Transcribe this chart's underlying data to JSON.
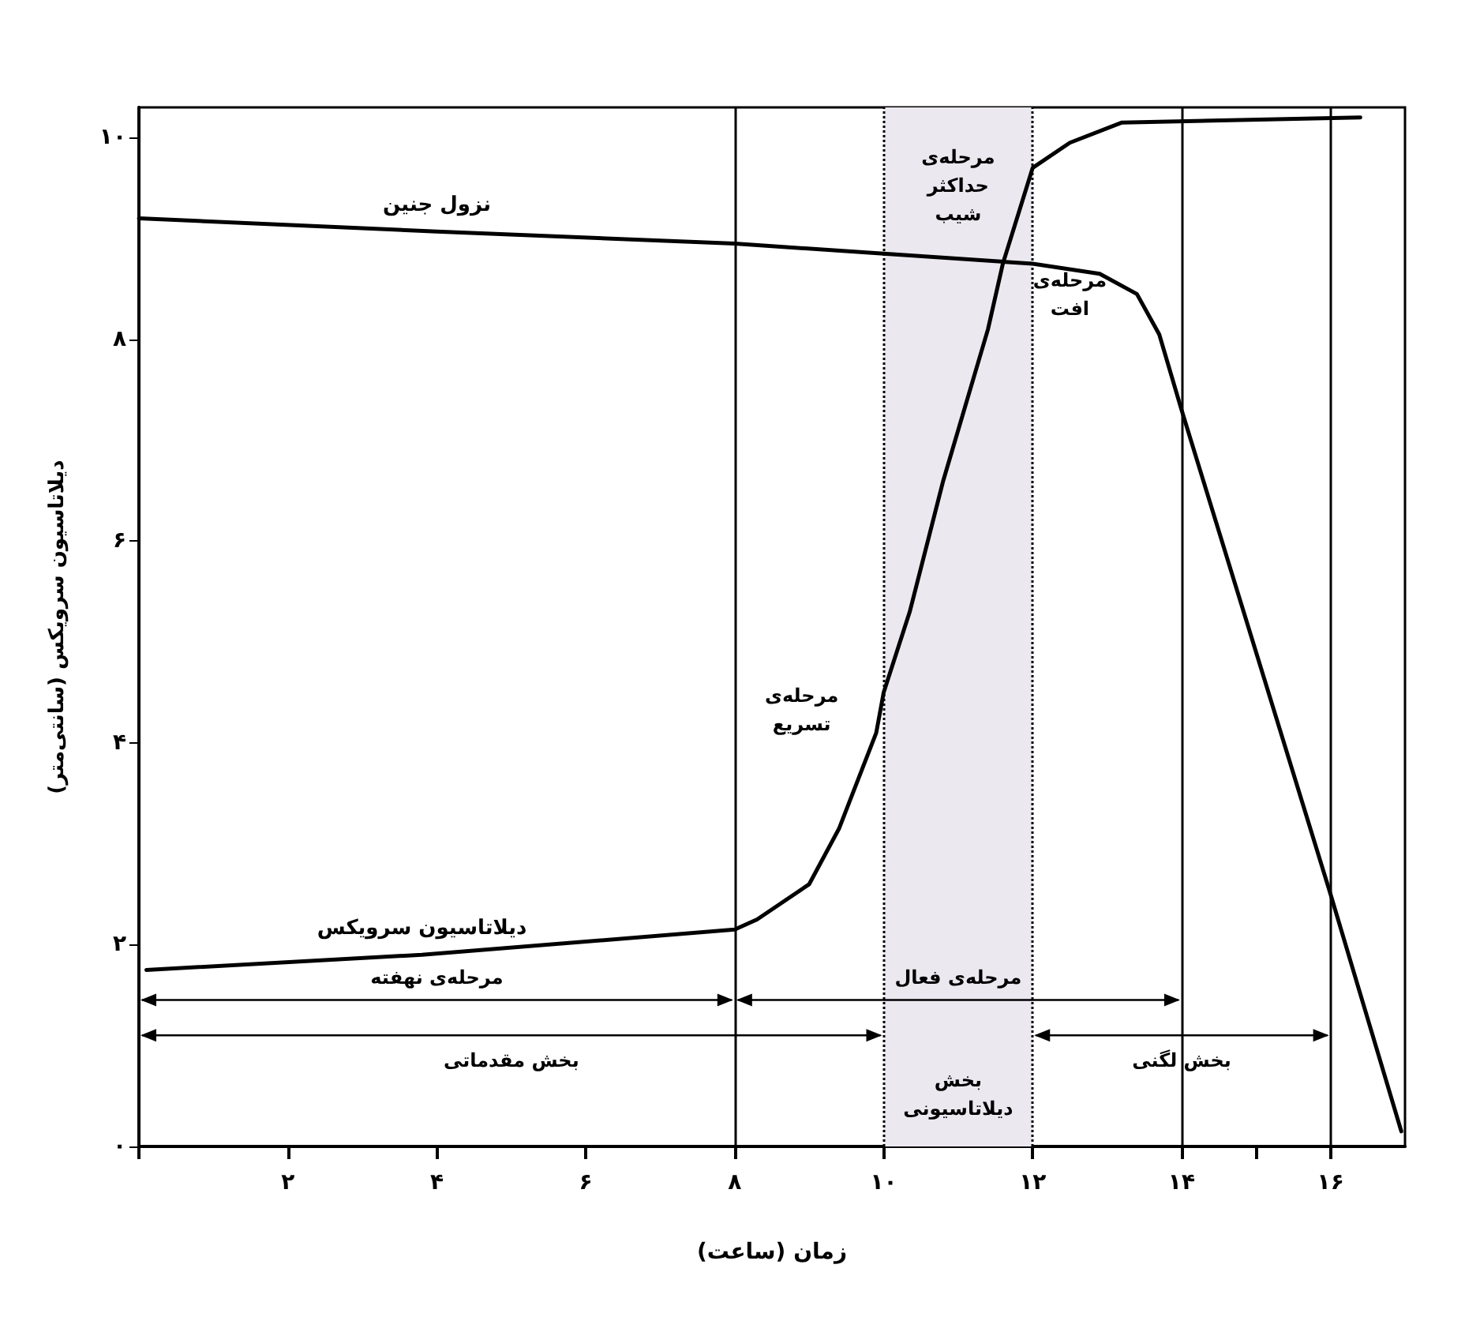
{
  "chart_data": {
    "type": "line",
    "xlabel": "زمان (ساعت)",
    "ylabel": "دیلاتاسیون سرویکس (سانتی‌متر)",
    "xlim": [
      0,
      17
    ],
    "ylim": [
      0,
      10.3
    ],
    "xticks": [
      {
        "value": 0,
        "label": null
      },
      {
        "value": 2,
        "label": "۲"
      },
      {
        "value": 4,
        "label": "۴"
      },
      {
        "value": 6,
        "label": "۶"
      },
      {
        "value": 8,
        "label": "۸"
      },
      {
        "value": 10,
        "label": "۱۰"
      },
      {
        "value": 12,
        "label": "۱۲"
      },
      {
        "value": 14,
        "label": "۱۴"
      },
      {
        "value": 15,
        "label": null
      },
      {
        "value": 16,
        "label": "۱۶"
      }
    ],
    "yticks": [
      {
        "value": 0,
        "label": "۰"
      },
      {
        "value": 2,
        "label": "۲"
      },
      {
        "value": 4,
        "label": "۴"
      },
      {
        "value": 6,
        "label": "۶"
      },
      {
        "value": 8,
        "label": "۸"
      },
      {
        "value": 10,
        "label": "۱۰"
      }
    ],
    "grid": false,
    "legend": false,
    "marker": "none",
    "line_style": "solid",
    "series": [
      {
        "name": "دیلاتاسیون سرویکس",
        "color": "#000000",
        "x": [
          0.1,
          3.8,
          8,
          8.3,
          9,
          9.4,
          9.9,
          10,
          10.35,
          10.8,
          11.4,
          11.6,
          12,
          12.5,
          13.2,
          16.4
        ],
        "values": [
          1.75,
          1.9,
          2.15,
          2.25,
          2.6,
          3.15,
          4.1,
          4.5,
          5.3,
          6.6,
          8.1,
          8.75,
          9.7,
          9.95,
          10.15,
          10.2
        ]
      },
      {
        "name": "نزول جنین",
        "color": "#000000",
        "x": [
          0,
          4,
          8,
          10,
          12,
          12.9,
          13.4,
          13.7,
          14,
          16,
          16.95
        ],
        "values": [
          9.2,
          9.07,
          8.95,
          8.85,
          8.75,
          8.65,
          8.45,
          8.05,
          7.3,
          2.5,
          0.15
        ]
      }
    ],
    "ref_lines": [
      {
        "axis": "x",
        "value": 8,
        "line_style": "solid"
      },
      {
        "axis": "x",
        "value": 10,
        "line_style": "dotted"
      },
      {
        "axis": "x",
        "value": 12,
        "line_style": "dotted"
      },
      {
        "axis": "x",
        "value": 14,
        "line_style": "solid"
      },
      {
        "axis": "x",
        "value": 16,
        "line_style": "solid"
      }
    ],
    "bands": [
      {
        "axis": "x",
        "from": 10,
        "to": 12,
        "color": "#ebe8f0"
      }
    ],
    "annotations": [
      "مرحله‌ی حداکثر شیب",
      "مرحله‌ی افت",
      "مرحله‌ی تسریع",
      "بخش دیلاتاسیونی",
      "مرحله‌ی نهفته",
      "مرحله‌ی فعال",
      "بخش مقدماتی",
      "بخش لگنی"
    ]
  }
}
